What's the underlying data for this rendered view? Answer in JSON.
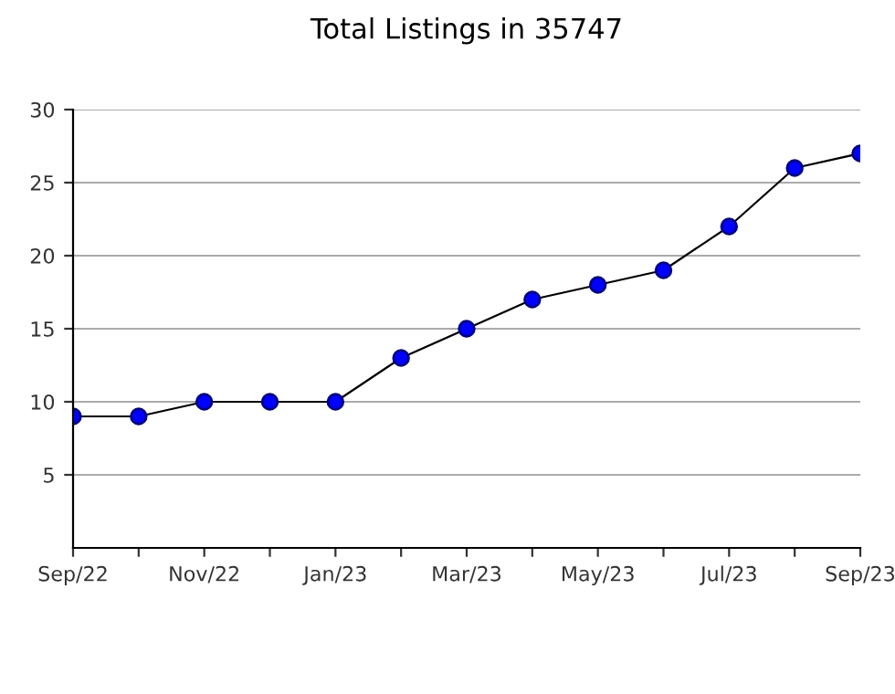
{
  "chart_data": {
    "type": "line",
    "title": "Total Listings in 35747",
    "categories": [
      "Sep/22",
      null,
      "Nov/22",
      null,
      "Jan/23",
      null,
      "Mar/23",
      null,
      "May/23",
      null,
      "Jul/23",
      null,
      "Sep/23"
    ],
    "series": [
      {
        "color": "#0000ff",
        "values": [
          9,
          9,
          10,
          10,
          10,
          13,
          15,
          17,
          18,
          19,
          22,
          26,
          27
        ]
      }
    ],
    "ylim": [
      0,
      30
    ],
    "yticks": [
      5,
      10,
      15,
      20,
      25,
      30
    ],
    "grid": "y",
    "marker": "circle",
    "line_style": "solid",
    "legend": false
  }
}
